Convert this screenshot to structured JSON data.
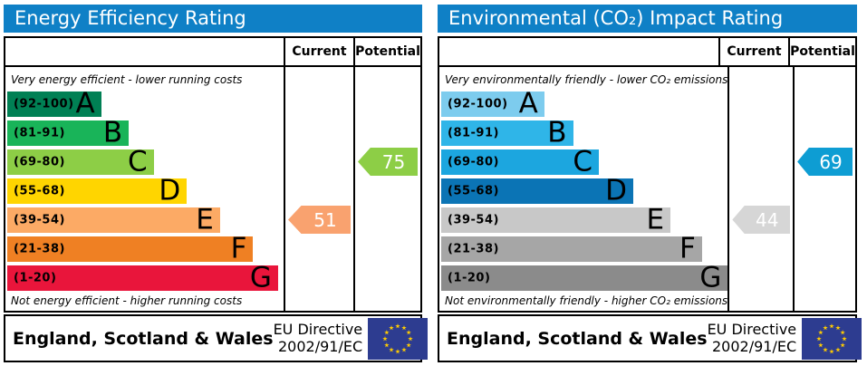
{
  "colors": {
    "header_bg": "#0f80c6",
    "border": "#000000",
    "flag_bg": "#2d3c90",
    "flag_star": "#ffcc00"
  },
  "panels": [
    {
      "title": "Energy Efficiency Rating",
      "columns": {
        "current": "Current",
        "potential": "Potential"
      },
      "top_note": "Very energy efficient - lower running costs",
      "bottom_note": "Not energy efficient - higher running costs",
      "bands": [
        {
          "letter": "A",
          "range": "(92-100)",
          "color": "#008054",
          "width_pct": 34
        },
        {
          "letter": "B",
          "range": "(81-91)",
          "color": "#19b459",
          "width_pct": 44
        },
        {
          "letter": "C",
          "range": "(69-80)",
          "color": "#8dce46",
          "width_pct": 53
        },
        {
          "letter": "D",
          "range": "(55-68)",
          "color": "#ffd500",
          "width_pct": 65
        },
        {
          "letter": "E",
          "range": "(39-54)",
          "color": "#fcaa65",
          "width_pct": 77
        },
        {
          "letter": "F",
          "range": "(21-38)",
          "color": "#ef8023",
          "width_pct": 89
        },
        {
          "letter": "G",
          "range": "(1-20)",
          "color": "#e9153b",
          "width_pct": 98
        }
      ],
      "current": {
        "value": "51",
        "band": "E",
        "band_index": 4,
        "color": "#f9a26f",
        "text_color": "#ffffff"
      },
      "potential": {
        "value": "75",
        "band": "C",
        "band_index": 2,
        "color": "#8dce46",
        "text_color": "#ffffff"
      },
      "footer": {
        "region": "England, Scotland & Wales",
        "directive_line1": "EU Directive",
        "directive_line2": "2002/91/EC"
      }
    },
    {
      "title": "Environmental (CO₂) Impact Rating",
      "columns": {
        "current": "Current",
        "potential": "Potential"
      },
      "top_note": "Very environmentally friendly - lower CO₂ emissions",
      "bottom_note": "Not environmentally friendly - higher CO₂ emissions",
      "bands": [
        {
          "letter": "A",
          "range": "(92-100)",
          "color": "#7dccee",
          "width_pct": 36
        },
        {
          "letter": "B",
          "range": "(81-91)",
          "color": "#2fb5e8",
          "width_pct": 46
        },
        {
          "letter": "C",
          "range": "(69-80)",
          "color": "#1ca6df",
          "width_pct": 55
        },
        {
          "letter": "D",
          "range": "(55-68)",
          "color": "#0b74b5",
          "width_pct": 67
        },
        {
          "letter": "E",
          "range": "(39-54)",
          "color": "#c8c8c8",
          "width_pct": 80
        },
        {
          "letter": "F",
          "range": "(21-38)",
          "color": "#a6a6a6",
          "width_pct": 91
        },
        {
          "letter": "G",
          "range": "(1-20)",
          "color": "#8b8b8b",
          "width_pct": 100
        }
      ],
      "current": {
        "value": "44",
        "band": "E",
        "band_index": 4,
        "color": "#d6d6d6",
        "text_color": "#ffffff"
      },
      "potential": {
        "value": "69",
        "band": "C",
        "band_index": 2,
        "color": "#0e9dd3",
        "text_color": "#ffffff"
      },
      "footer": {
        "region": "England, Scotland & Wales",
        "directive_line1": "EU Directive",
        "directive_line2": "2002/91/EC"
      }
    }
  ],
  "chart_data": [
    {
      "type": "bar",
      "title": "Energy Efficiency Rating",
      "categories": [
        "A (92-100)",
        "B (81-91)",
        "C (69-80)",
        "D (55-68)",
        "E (39-54)",
        "F (21-38)",
        "G (1-20)"
      ],
      "series": [
        {
          "name": "Current",
          "value": 51,
          "band": "E"
        },
        {
          "name": "Potential",
          "value": 75,
          "band": "C"
        }
      ],
      "xlabel": "",
      "ylabel": "",
      "xlim": [
        1,
        100
      ],
      "annotations": [
        "Very energy efficient - lower running costs",
        "Not energy efficient - higher running costs"
      ]
    },
    {
      "type": "bar",
      "title": "Environmental (CO₂) Impact Rating",
      "categories": [
        "A (92-100)",
        "B (81-91)",
        "C (69-80)",
        "D (55-68)",
        "E (39-54)",
        "F (21-38)",
        "G (1-20)"
      ],
      "series": [
        {
          "name": "Current",
          "value": 44,
          "band": "E"
        },
        {
          "name": "Potential",
          "value": 69,
          "band": "C"
        }
      ],
      "xlabel": "",
      "ylabel": "",
      "xlim": [
        1,
        100
      ],
      "annotations": [
        "Very environmentally friendly - lower CO₂ emissions",
        "Not environmentally friendly - higher CO₂ emissions"
      ]
    }
  ]
}
